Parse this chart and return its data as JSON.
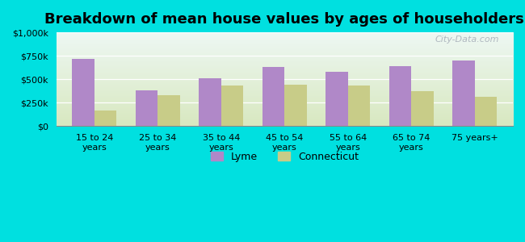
{
  "title": "Breakdown of mean house values by ages of householders",
  "categories": [
    "15 to 24\nyears",
    "25 to 34\nyears",
    "35 to 44\nyears",
    "45 to 54\nyears",
    "55 to 64\nyears",
    "65 to 74\nyears",
    "75 years+"
  ],
  "lyme_values": [
    720000,
    380000,
    510000,
    630000,
    580000,
    640000,
    700000
  ],
  "connecticut_values": [
    170000,
    330000,
    430000,
    440000,
    430000,
    370000,
    310000
  ],
  "lyme_color": "#b088c8",
  "connecticut_color": "#c8cc88",
  "background_outer": "#00e0e0",
  "background_inner_top": "#eef8f4",
  "background_inner_bottom": "#d8e8c0",
  "ylim": [
    0,
    1000000
  ],
  "yticks": [
    0,
    250000,
    500000,
    750000,
    1000000
  ],
  "ytick_labels": [
    "$0",
    "$250k",
    "$500k",
    "$750k",
    "$1,000k"
  ],
  "legend_lyme": "Lyme",
  "legend_connecticut": "Connecticut",
  "title_fontsize": 13,
  "watermark": "City-Data.com",
  "bar_width": 0.35,
  "n_categories": 7
}
